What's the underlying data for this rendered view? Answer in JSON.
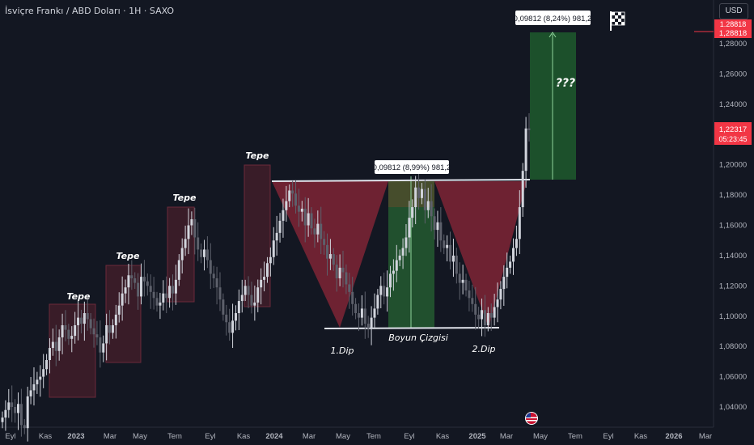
{
  "header": {
    "title": "İsviçre Frankı / ABD Doları · 1H · SAXO",
    "currency": "USD"
  },
  "colors": {
    "bg": "#131722",
    "up": "#d1d4dc",
    "down": "#5d606b",
    "tepe_box": "#6b2a3a",
    "triangle": "#8e2a3c",
    "green_zone": "#2e6b3a",
    "target_zone": "#1f4a2c",
    "price_red": "#f23645",
    "label_text": "#b2b5be"
  },
  "price_scale": {
    "ticks": [
      "1,04000",
      "1,06000",
      "1,08000",
      "1,10000",
      "1,12000",
      "1,14000",
      "1,16000",
      "1,18000",
      "1,20000",
      "1,22000",
      "1,24000",
      "1,26000",
      "1,28000"
    ],
    "current_price": "1,22317",
    "countdown": "05:23:45",
    "target_price": "1,28818",
    "target_top": "1,28818"
  },
  "time_axis": [
    "Eyl",
    "Kas",
    "2023",
    "Mar",
    "May",
    "Tem",
    "Eyl",
    "Kas",
    "2024",
    "Mar",
    "May",
    "Tem",
    "Eyl",
    "Kas",
    "2025",
    "Mar",
    "May",
    "Tem",
    "Eyl",
    "Kas",
    "2026",
    "Mar"
  ],
  "annotations": {
    "tepe": [
      "Tepe",
      "Tepe",
      "Tepe",
      "Tepe"
    ],
    "dip1": "1.Dip",
    "dip2": "2.Dip",
    "neckline": "Boyun Çizgisi",
    "question": "???",
    "measure_pattern": "0,09812 (8,99%) 981,2",
    "measure_target": "0,09812 (8,24%) 981,2"
  },
  "chart_data": {
    "type": "candlestick",
    "title": "İsviçre Frankı / ABD Doları · 1H · SAXO",
    "ylim": [
      1.025,
      1.3
    ],
    "neckline": 1.189,
    "dip_level": 1.091,
    "target": 1.2882,
    "current": 1.22317,
    "closes": [
      1.033,
      1.038,
      1.043,
      1.04,
      1.036,
      1.042,
      1.028,
      1.026,
      1.047,
      1.051,
      1.055,
      1.058,
      1.06,
      1.065,
      1.071,
      1.079,
      1.083,
      1.077,
      1.086,
      1.094,
      1.091,
      1.085,
      1.087,
      1.094,
      1.099,
      1.095,
      1.102,
      1.098,
      1.092,
      1.088,
      1.086,
      1.076,
      1.082,
      1.094,
      1.089,
      1.094,
      1.101,
      1.107,
      1.115,
      1.119,
      1.127,
      1.125,
      1.122,
      1.113,
      1.126,
      1.123,
      1.12,
      1.116,
      1.112,
      1.107,
      1.109,
      1.115,
      1.112,
      1.12,
      1.115,
      1.124,
      1.137,
      1.145,
      1.151,
      1.16,
      1.164,
      1.152,
      1.144,
      1.139,
      1.144,
      1.137,
      1.128,
      1.125,
      1.119,
      1.111,
      1.101,
      1.096,
      1.089,
      1.097,
      1.102,
      1.11,
      1.114,
      1.12,
      1.114,
      1.107,
      1.109,
      1.119,
      1.124,
      1.126,
      1.135,
      1.139,
      1.15,
      1.155,
      1.163,
      1.17,
      1.176,
      1.183,
      1.181,
      1.173,
      1.169,
      1.171,
      1.16,
      1.168,
      1.158,
      1.154,
      1.161,
      1.151,
      1.147,
      1.138,
      1.141,
      1.134,
      1.125,
      1.132,
      1.129,
      1.121,
      1.116,
      1.108,
      1.102,
      1.099,
      1.105,
      1.095,
      1.092,
      1.099,
      1.105,
      1.114,
      1.12,
      1.113,
      1.119,
      1.128,
      1.13,
      1.137,
      1.14,
      1.145,
      1.152,
      1.165,
      1.172,
      1.185,
      1.178,
      1.184,
      1.17,
      1.176,
      1.166,
      1.157,
      1.162,
      1.15,
      1.145,
      1.147,
      1.136,
      1.14,
      1.128,
      1.122,
      1.124,
      1.117,
      1.112,
      1.108,
      1.101,
      1.098,
      1.104,
      1.094,
      1.102,
      1.099,
      1.106,
      1.111,
      1.118,
      1.126,
      1.132,
      1.136,
      1.145,
      1.151,
      1.172,
      1.196,
      1.224,
      1.223
    ]
  }
}
